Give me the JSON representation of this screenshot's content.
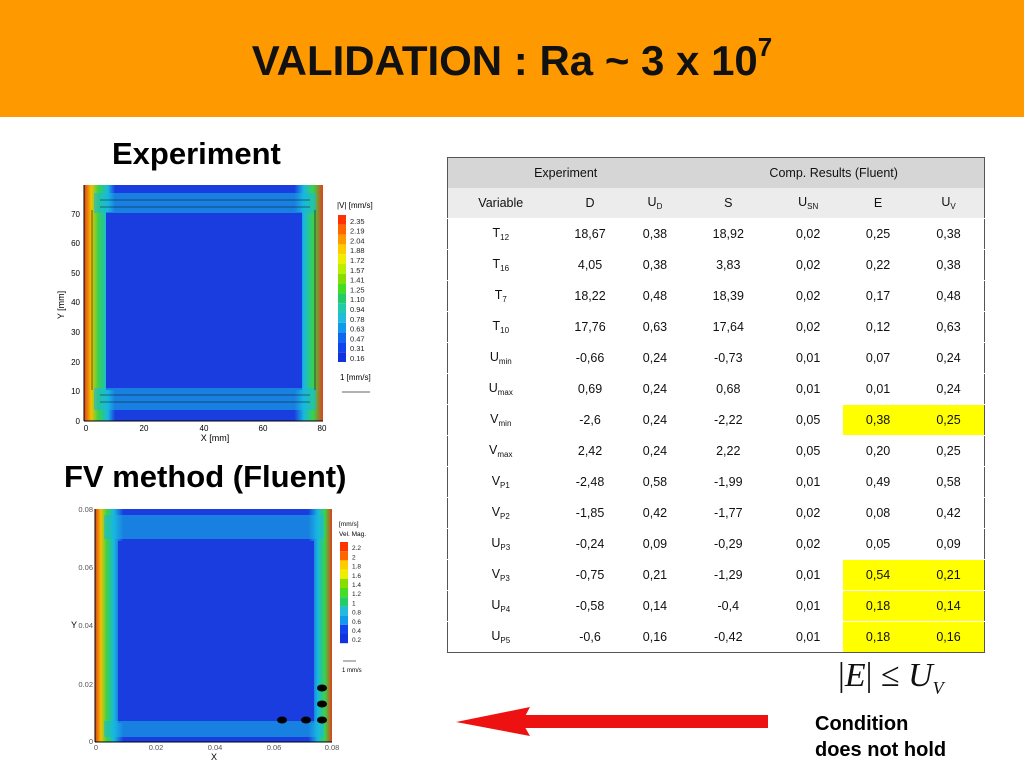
{
  "slide": {
    "title_main": "VALIDATION : Ra ~ 3 x 10",
    "title_exp": "7",
    "banner_color": "#ff9900"
  },
  "sections": {
    "experiment": "Experiment",
    "fv": "FV method (Fluent)"
  },
  "exp_plot": {
    "y_label": "Y [mm]",
    "x_label": "X [mm]",
    "y_ticks": [
      "70",
      "60",
      "50",
      "40",
      "30",
      "20",
      "10",
      "0"
    ],
    "x_ticks": [
      "0",
      "20",
      "40",
      "60",
      "80"
    ],
    "legend_title": "|V| [mm/s]",
    "legend_values": [
      "2.35",
      "2.19",
      "2.04",
      "1.88",
      "1.72",
      "1.57",
      "1.41",
      "1.25",
      "1.10",
      "0.94",
      "0.78",
      "0.63",
      "0.47",
      "0.31",
      "0.16"
    ],
    "ref_vector": "1 [mm/s]"
  },
  "fv_plot": {
    "y_label": "Y",
    "x_label": "X",
    "y_ticks": [
      "0.08",
      "0.06",
      "0.04",
      "0.02",
      "0"
    ],
    "x_ticks": [
      "0",
      "0.02",
      "0.04",
      "0.06",
      "0.08"
    ],
    "legend_unit": "[mm/s]",
    "legend_title": "Vel. Mag.",
    "legend_values": [
      "2.2",
      "2",
      "1.8",
      "1.6",
      "1.4",
      "1.2",
      "1",
      "0.8",
      "0.6",
      "0.4",
      "0.2"
    ],
    "ref_vector": "1 mm/s"
  },
  "table": {
    "group_headers": [
      "Experiment",
      "Comp. Results (Fluent)"
    ],
    "columns": [
      "Variable",
      "D",
      "U_D",
      "S",
      "U_SN",
      "E",
      "U_V"
    ],
    "rows": [
      {
        "v": "T",
        "sub": "12",
        "d": "18,67",
        "ud": "0,38",
        "s": "18,92",
        "usn": "0,02",
        "e": "0,25",
        "uv": "0,38",
        "hl": false
      },
      {
        "v": "T",
        "sub": "16",
        "d": "4,05",
        "ud": "0,38",
        "s": "3,83",
        "usn": "0,02",
        "e": "0,22",
        "uv": "0,38",
        "hl": false
      },
      {
        "v": "T",
        "sub": "7",
        "d": "18,22",
        "ud": "0,48",
        "s": "18,39",
        "usn": "0,02",
        "e": "0,17",
        "uv": "0,48",
        "hl": false
      },
      {
        "v": "T",
        "sub": "10",
        "d": "17,76",
        "ud": "0,63",
        "s": "17,64",
        "usn": "0,02",
        "e": "0,12",
        "uv": "0,63",
        "hl": false
      },
      {
        "v": "U",
        "sub": "min",
        "d": "-0,66",
        "ud": "0,24",
        "s": "-0,73",
        "usn": "0,01",
        "e": "0,07",
        "uv": "0,24",
        "hl": false
      },
      {
        "v": "U",
        "sub": "max",
        "d": "0,69",
        "ud": "0,24",
        "s": "0,68",
        "usn": "0,01",
        "e": "0,01",
        "uv": "0,24",
        "hl": false
      },
      {
        "v": "V",
        "sub": "min",
        "d": "-2,6",
        "ud": "0,24",
        "s": "-2,22",
        "usn": "0,05",
        "e": "0,38",
        "uv": "0,25",
        "hl": true
      },
      {
        "v": "V",
        "sub": "max",
        "d": "2,42",
        "ud": "0,24",
        "s": "2,22",
        "usn": "0,05",
        "e": "0,20",
        "uv": "0,25",
        "hl": false
      },
      {
        "v": "V",
        "sub": "P1",
        "d": "-2,48",
        "ud": "0,58",
        "s": "-1,99",
        "usn": "0,01",
        "e": "0,49",
        "uv": "0,58",
        "hl": false
      },
      {
        "v": "V",
        "sub": "P2",
        "d": "-1,85",
        "ud": "0,42",
        "s": "-1,77",
        "usn": "0,02",
        "e": "0,08",
        "uv": "0,42",
        "hl": false
      },
      {
        "v": "U",
        "sub": "P3",
        "d": "-0,24",
        "ud": "0,09",
        "s": "-0,29",
        "usn": "0,02",
        "e": "0,05",
        "uv": "0,09",
        "hl": false
      },
      {
        "v": "V",
        "sub": "P3",
        "d": "-0,75",
        "ud": "0,21",
        "s": "-1,29",
        "usn": "0,01",
        "e": "0,54",
        "uv": "0,21",
        "hl": true
      },
      {
        "v": "U",
        "sub": "P4",
        "d": "-0,58",
        "ud": "0,14",
        "s": "-0,4",
        "usn": "0,01",
        "e": "0,18",
        "uv": "0,14",
        "hl": true
      },
      {
        "v": "U",
        "sub": "P5",
        "d": "-0,6",
        "ud": "0,16",
        "s": "-0,42",
        "usn": "0,01",
        "e": "0,18",
        "uv": "0,16",
        "hl": true
      }
    ]
  },
  "formula": {
    "e": "E",
    "le": "≤",
    "u": "U",
    "sub": "V"
  },
  "condition": {
    "line1": "Condition",
    "line2": "does not hold"
  },
  "colors": {
    "highlight": "#ffff00",
    "arrow": "#ee1111",
    "cavity": "#1a3de0"
  }
}
